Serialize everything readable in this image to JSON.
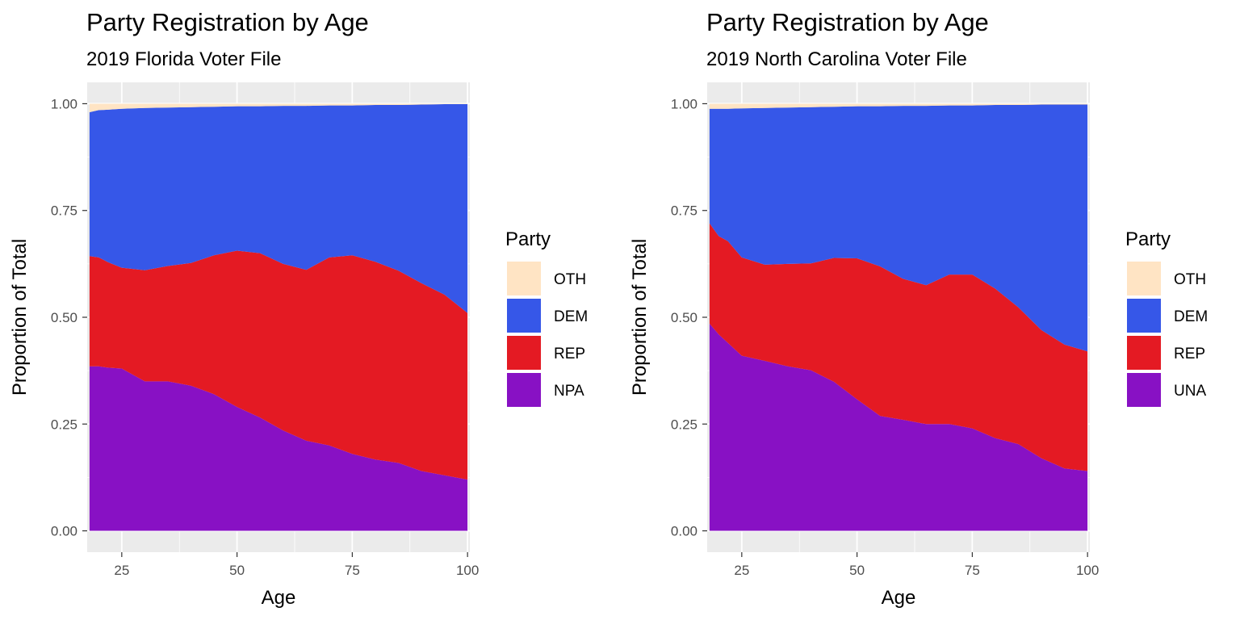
{
  "chart_data": [
    {
      "type": "area",
      "stacked": true,
      "normalized": true,
      "title": "Party Registration by Age",
      "subtitle": "2019 Florida Voter File",
      "xlabel": "Age",
      "ylabel": "Proportion of Total",
      "xlim": [
        17.5,
        100.5
      ],
      "ylim": [
        0,
        1
      ],
      "xticks": [
        "25",
        "50",
        "75",
        "100"
      ],
      "yticks": [
        "0.00",
        "0.25",
        "0.50",
        "0.75",
        "1.00"
      ],
      "legend_title": "Party",
      "legend_position": "right",
      "grid": true,
      "x": [
        18,
        20,
        22,
        25,
        30,
        35,
        40,
        45,
        50,
        55,
        60,
        65,
        70,
        75,
        80,
        85,
        90,
        95,
        100
      ],
      "series": [
        {
          "name": "OTH",
          "color": "#FFE4C4",
          "values": [
            0.02,
            0.015,
            0.014,
            0.012,
            0.01,
            0.009,
            0.008,
            0.007,
            0.006,
            0.006,
            0.005,
            0.005,
            0.004,
            0.004,
            0.003,
            0.003,
            0.002,
            0.001,
            0.001
          ]
        },
        {
          "name": "DEM",
          "color": "#3657E8",
          "values": [
            0.337,
            0.345,
            0.357,
            0.372,
            0.38,
            0.371,
            0.365,
            0.348,
            0.338,
            0.344,
            0.37,
            0.384,
            0.356,
            0.351,
            0.367,
            0.388,
            0.418,
            0.446,
            0.489
          ]
        },
        {
          "name": "REP",
          "color": "#E41A23",
          "values": [
            0.258,
            0.255,
            0.247,
            0.236,
            0.26,
            0.27,
            0.287,
            0.325,
            0.366,
            0.385,
            0.39,
            0.4,
            0.44,
            0.465,
            0.463,
            0.45,
            0.44,
            0.423,
            0.39
          ]
        },
        {
          "name": "NPA",
          "color": "#8811C4",
          "values": [
            0.385,
            0.385,
            0.382,
            0.38,
            0.35,
            0.35,
            0.34,
            0.32,
            0.29,
            0.265,
            0.235,
            0.211,
            0.2,
            0.18,
            0.167,
            0.159,
            0.14,
            0.13,
            0.12
          ]
        }
      ]
    },
    {
      "type": "area",
      "stacked": true,
      "normalized": true,
      "title": "Party Registration by Age",
      "subtitle": "2019 North Carolina Voter File",
      "xlabel": "Age",
      "ylabel": "Proportion of Total",
      "xlim": [
        17.5,
        100.5
      ],
      "ylim": [
        0,
        1
      ],
      "xticks": [
        "25",
        "50",
        "75",
        "100"
      ],
      "yticks": [
        "0.00",
        "0.25",
        "0.50",
        "0.75",
        "1.00"
      ],
      "legend_title": "Party",
      "legend_position": "right",
      "grid": true,
      "x": [
        18,
        20,
        22,
        25,
        30,
        35,
        40,
        45,
        50,
        55,
        60,
        65,
        70,
        75,
        80,
        85,
        90,
        95,
        100
      ],
      "series": [
        {
          "name": "OTH",
          "color": "#FFE4C4",
          "values": [
            0.012,
            0.012,
            0.012,
            0.011,
            0.01,
            0.009,
            0.008,
            0.007,
            0.006,
            0.006,
            0.005,
            0.005,
            0.004,
            0.004,
            0.003,
            0.003,
            0.002,
            0.002,
            0.002
          ]
        },
        {
          "name": "DEM",
          "color": "#3657E8",
          "values": [
            0.268,
            0.298,
            0.31,
            0.349,
            0.367,
            0.366,
            0.366,
            0.354,
            0.356,
            0.375,
            0.405,
            0.42,
            0.396,
            0.396,
            0.43,
            0.474,
            0.528,
            0.562,
            0.578
          ]
        },
        {
          "name": "REP",
          "color": "#E41A23",
          "values": [
            0.235,
            0.23,
            0.238,
            0.23,
            0.225,
            0.24,
            0.25,
            0.29,
            0.33,
            0.35,
            0.33,
            0.325,
            0.35,
            0.36,
            0.35,
            0.32,
            0.3,
            0.29,
            0.28
          ]
        },
        {
          "name": "UNA",
          "color": "#8811C4",
          "values": [
            0.485,
            0.46,
            0.44,
            0.41,
            0.398,
            0.385,
            0.376,
            0.349,
            0.308,
            0.269,
            0.26,
            0.25,
            0.25,
            0.24,
            0.217,
            0.203,
            0.17,
            0.146,
            0.14
          ]
        }
      ]
    }
  ]
}
